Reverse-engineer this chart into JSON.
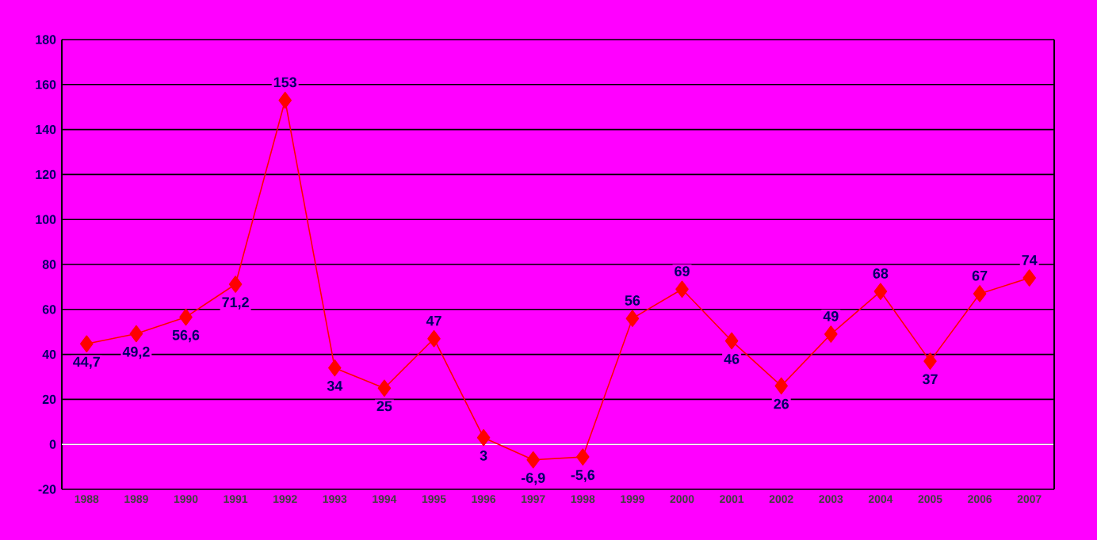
{
  "chart_data": {
    "type": "line",
    "categories": [
      "1988",
      "1989",
      "1990",
      "1991",
      "1992",
      "1993",
      "1994",
      "1995",
      "1996",
      "1997",
      "1998",
      "1999",
      "2000",
      "2001",
      "2002",
      "2003",
      "2004",
      "2005",
      "2006",
      "2007"
    ],
    "series": [
      {
        "color": "#ff0000",
        "values": [
          44.7,
          49.2,
          56.6,
          71.2,
          153,
          34,
          25,
          47,
          3,
          -6.9,
          -5.6,
          56,
          69,
          46,
          26,
          49,
          68,
          37,
          67,
          74
        ],
        "value_labels": [
          "44,7",
          "49,2",
          "56,6",
          "71,2",
          "153",
          "34",
          "25",
          "47",
          "3",
          "-6,9",
          "-5,6",
          "56",
          "69",
          "46",
          "26",
          "49",
          "68",
          "37",
          "67",
          "74"
        ]
      }
    ],
    "ylim": [
      -20,
      180
    ],
    "yticks": [
      -20,
      0,
      20,
      40,
      60,
      80,
      100,
      120,
      140,
      160,
      180
    ],
    "grid": "y",
    "marker": "diamond",
    "line_style": "solid"
  }
}
